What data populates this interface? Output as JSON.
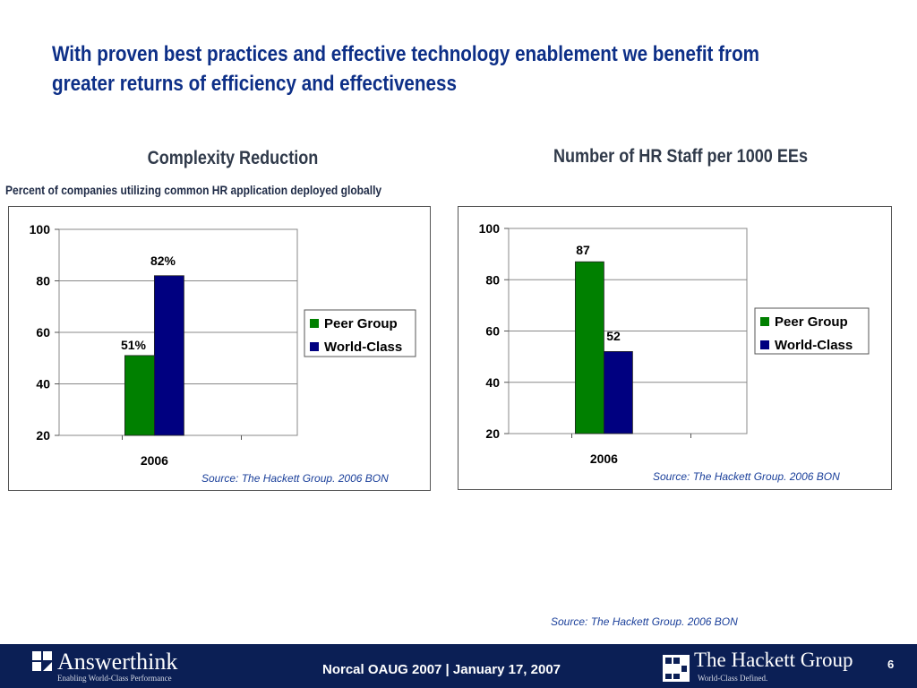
{
  "slide": {
    "title": "With proven best practices and effective technology enablement we benefit from greater returns of efficiency and effectiveness",
    "source_bottom": "Source: The Hackett Group. 2006 BON"
  },
  "chart_data": [
    {
      "type": "bar",
      "title": "Complexity Reduction",
      "subtitle": "Percent of companies utilizing common HR application deployed globally",
      "categories": [
        "2006"
      ],
      "series": [
        {
          "name": "Peer Group",
          "values": [
            51
          ],
          "color": "#008000",
          "label": "51%"
        },
        {
          "name": "World-Class",
          "values": [
            82
          ],
          "color": "#000080",
          "label": "82%"
        }
      ],
      "ylim": [
        20,
        100
      ],
      "yticks": [
        "100",
        "80",
        "60",
        "40",
        "20"
      ],
      "grid": true,
      "legend": "right",
      "source": "Source: The Hackett Group. 2006 BON"
    },
    {
      "type": "bar",
      "title": "Number of HR Staff per 1000 EEs",
      "categories": [
        "2006"
      ],
      "series": [
        {
          "name": "Peer Group",
          "values": [
            87
          ],
          "color": "#008000",
          "label": "87"
        },
        {
          "name": "World-Class",
          "values": [
            52
          ],
          "color": "#000080",
          "label": "52"
        }
      ],
      "ylim": [
        20,
        100
      ],
      "yticks": [
        "100",
        "80",
        "60",
        "40",
        "20"
      ],
      "grid": true,
      "legend": "right",
      "source": "Source: The Hackett Group. 2006 BON"
    }
  ],
  "footer": {
    "event": "Norcal OAUG 2007  | January 17, 2007",
    "page": "6",
    "left_logo": {
      "name": "Answerthink",
      "tagline": "Enabling World-Class Performance",
      "icon": "answerthink-logo-icon"
    },
    "right_logo": {
      "name": "The Hackett Group",
      "tagline": "World-Class Defined.",
      "icon": "hackett-logo-icon"
    },
    "background": "#0b1f55"
  }
}
